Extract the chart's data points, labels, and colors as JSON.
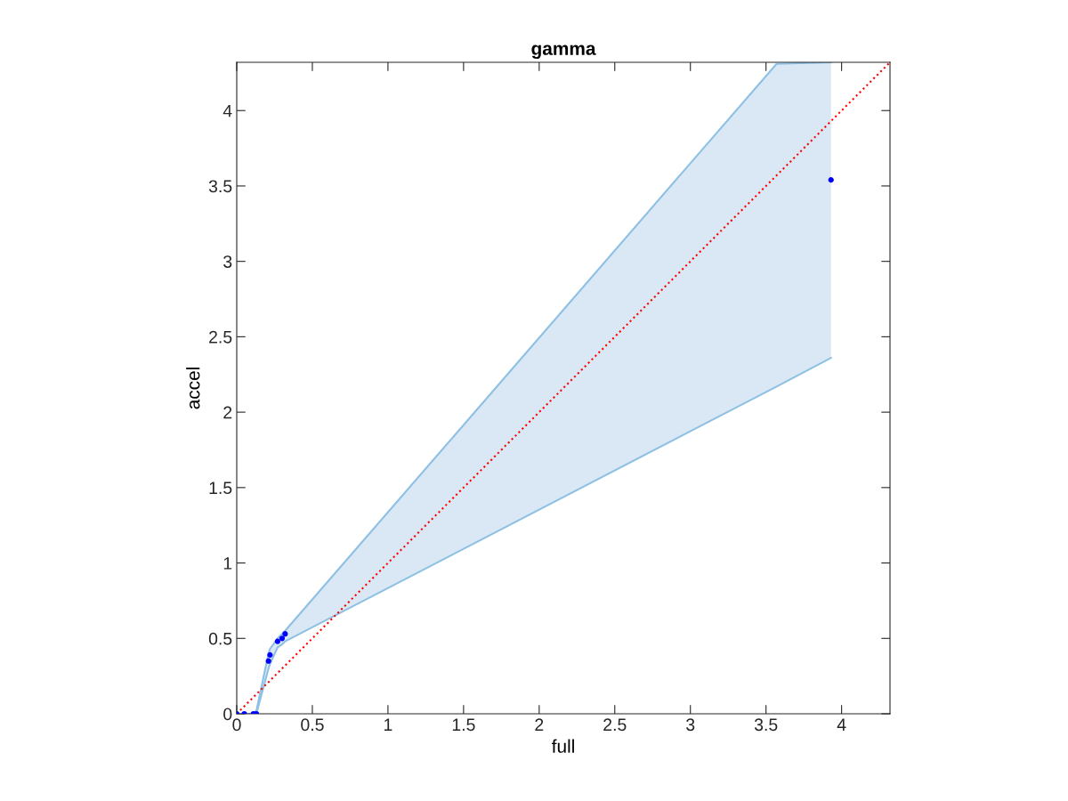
{
  "chart_data": {
    "type": "scatter",
    "title": "gamma",
    "xlabel": "full",
    "ylabel": "accel",
    "xlim": [
      0,
      4.32
    ],
    "ylim": [
      0,
      4.32
    ],
    "xticks": [
      0,
      0.5,
      1,
      1.5,
      2,
      2.5,
      3,
      3.5,
      4
    ],
    "yticks": [
      0,
      0.5,
      1,
      1.5,
      2,
      2.5,
      3,
      3.5,
      4
    ],
    "grid": false,
    "legend": false,
    "marker": "circle",
    "series": [
      {
        "color": "#0000ff",
        "x": [
          0,
          0.05,
          0.11,
          0.13,
          0.21,
          0.22,
          0.27,
          0.3,
          0.32,
          3.57,
          3.93
        ],
        "values": [
          0,
          0,
          0,
          0,
          0.35,
          0.39,
          0.48,
          0.5,
          0.53,
          null,
          3.54
        ],
        "lower": [
          0,
          0,
          0,
          0,
          0.3,
          0.33,
          0.44,
          0.46,
          0.48,
          2.17,
          2.36
        ],
        "upper": [
          0,
          0,
          0,
          0.02,
          0.4,
          0.43,
          0.5,
          0.53,
          0.55,
          4.31,
          4.32
        ]
      },
      {
        "type": "line",
        "color": "#ff0000",
        "line_style": "dotted",
        "marker": "none",
        "x": [
          0,
          4.32
        ],
        "values": [
          0,
          4.32
        ]
      }
    ]
  }
}
